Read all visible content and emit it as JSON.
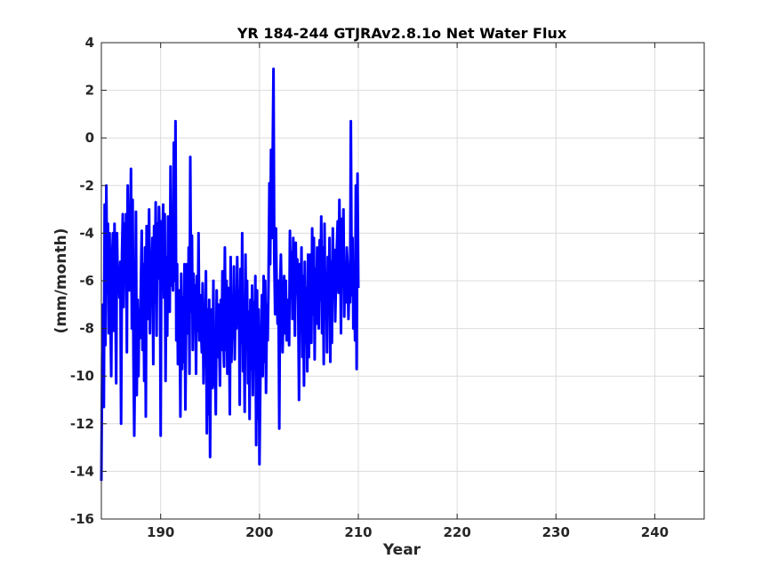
{
  "chart_data": {
    "type": "line",
    "title": "YR 184-244 GTJRAv2.8.1o Net Water Flux",
    "xlabel": "Year",
    "ylabel": "(mm/month)",
    "xlim": [
      184,
      245
    ],
    "ylim": [
      -16,
      4
    ],
    "xticks": [
      190,
      200,
      210,
      220,
      230,
      240
    ],
    "yticks": [
      -16,
      -14,
      -12,
      -10,
      -8,
      -6,
      -4,
      -2,
      0,
      2,
      4
    ],
    "grid": true,
    "series": [
      {
        "color": "#0000ff",
        "points_per_year": 12,
        "x_start": 184.0,
        "values": [
          -14.4,
          -9.2,
          -7.0,
          -11.3,
          -2.8,
          -8.7,
          -2.0,
          -6.5,
          -3.6,
          -8.2,
          -4.0,
          -7.4,
          -10.0,
          -5.2,
          -4.0,
          -8.1,
          -3.6,
          -6.5,
          -10.3,
          -4.0,
          -6.3,
          -5.7,
          -6.7,
          -5.2,
          -12.0,
          -4.9,
          -3.2,
          -7.1,
          -3.6,
          -5.8,
          -3.2,
          -9.0,
          -2.0,
          -5.6,
          -6.4,
          -4.3,
          -1.3,
          -8.0,
          -2.6,
          -9.2,
          -12.5,
          -8.7,
          -3.1,
          -10.8,
          -6.8,
          -10.0,
          -7.2,
          -8.4,
          -6.0,
          -3.9,
          -8.9,
          -5.3,
          -10.2,
          -4.6,
          -11.7,
          -3.7,
          -7.6,
          -6.3,
          -3.0,
          -8.2,
          -4.8,
          -5.6,
          -4.2,
          -9.5,
          -3.7,
          -6.9,
          -2.7,
          -8.3,
          -3.6,
          -5.9,
          -2.9,
          -4.7,
          -12.5,
          -3.5,
          -5.4,
          -2.8,
          -6.7,
          -3.2,
          -10.2,
          -5.0,
          -8.3,
          -3.3,
          -5.6,
          -7.3,
          -1.2,
          -6.2,
          -4.6,
          -6.4,
          -0.2,
          -6.0,
          0.7,
          -8.5,
          -5.3,
          -9.5,
          -6.4,
          -7.2,
          -11.7,
          -5.7,
          -9.7,
          -6.7,
          -9.4,
          -5.3,
          -11.4,
          -7.5,
          -5.3,
          -8.2,
          -4.6,
          -9.9,
          -0.8,
          -7.3,
          -4.1,
          -8.9,
          -5.7,
          -7.6,
          -6.2,
          -9.9,
          -5.8,
          -8.1,
          -4.0,
          -8.5,
          -6.6,
          -8.0,
          -9.0,
          -6.1,
          -10.3,
          -7.5,
          -8.2,
          -5.6,
          -12.4,
          -7.2,
          -11.6,
          -6.8,
          -13.4,
          -8.4,
          -7.2,
          -10.5,
          -6.0,
          -10.4,
          -9.3,
          -11.6,
          -6.4,
          -9.2,
          -7.0,
          -8.6,
          -10.4,
          -6.8,
          -8.9,
          -5.6,
          -8.1,
          -9.6,
          -4.6,
          -8.9,
          -6.0,
          -9.9,
          -6.3,
          -7.6,
          -11.6,
          -5.0,
          -9.4,
          -7.1,
          -8.4,
          -5.4,
          -9.3,
          -6.6,
          -8.0,
          -5.0,
          -7.8,
          -6.4,
          -11.2,
          -5.5,
          -8.6,
          -4.0,
          -9.8,
          -6.9,
          -11.5,
          -4.9,
          -8.5,
          -6.0,
          -10.3,
          -7.3,
          -11.8,
          -6.8,
          -9.7,
          -6.2,
          -10.8,
          -6.9,
          -8.7,
          -5.8,
          -12.9,
          -6.4,
          -11.8,
          -7.2,
          -13.7,
          -10.2,
          -8.7,
          -6.6,
          -10.0,
          -5.8,
          -9.4,
          -6.0,
          -10.7,
          -7.0,
          -8.5,
          -6.1,
          -1.9,
          -5.3,
          -0.5,
          -4.2,
          -0.7,
          2.9,
          -5.1,
          -7.4,
          -3.8,
          -6.6,
          -7.8,
          -6.0,
          -12.2,
          -6.3,
          -4.9,
          -6.8,
          -9.0,
          -7.3,
          -5.8,
          -8.2,
          -6.0,
          -8.5,
          -6.8,
          -7.5,
          -8.7,
          -3.9,
          -6.7,
          -4.8,
          -7.6,
          -4.2,
          -5.6,
          -8.3,
          -4.4,
          -6.5,
          -5.1,
          -7.0,
          -11.0,
          -5.3,
          -7.6,
          -4.6,
          -9.2,
          -5.8,
          -10.4,
          -5.2,
          -8.6,
          -6.3,
          -9.8,
          -4.9,
          -9.2,
          -6.1,
          -4.9,
          -8.6,
          -3.8,
          -7.4,
          -4.2,
          -9.3,
          -5.5,
          -7.8,
          -4.6,
          -6.9,
          -8.0,
          -4.3,
          -6.8,
          -3.3,
          -8.2,
          -4.6,
          -9.5,
          -3.6,
          -7.4,
          -5.7,
          -9.0,
          -5.0,
          -7.0,
          -4.2,
          -9.4,
          -5.2,
          -8.6,
          -3.8,
          -6.6,
          -4.7,
          -7.7,
          -5.9,
          -4.5,
          -3.5,
          -6.5,
          -2.6,
          -4.7,
          -8.2,
          -3.4,
          -6.2,
          -3.0,
          -7.5,
          -5.2,
          -6.9,
          -4.6,
          -5.3,
          -7.6,
          -5.9,
          -6.9,
          0.7,
          -6.6,
          -4.2,
          -8.0,
          -5.5,
          -8.5,
          -2.0,
          -9.7,
          -1.5,
          -6.3
        ]
      }
    ]
  }
}
